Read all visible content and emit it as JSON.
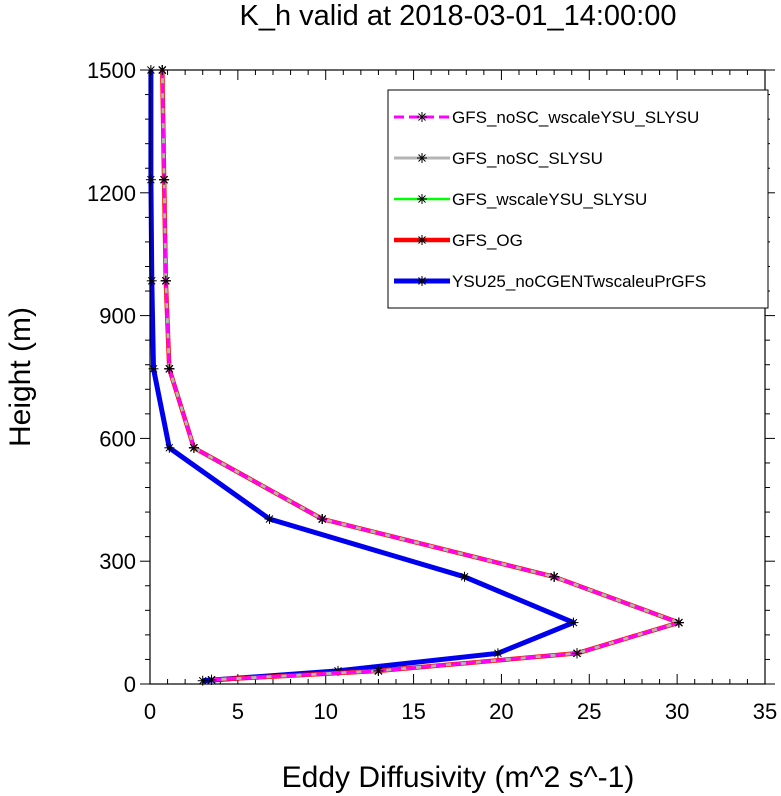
{
  "chart_data": {
    "type": "line",
    "title": "K_h valid at 2018-03-01_14:00:00",
    "xlabel": "Eddy Diffusivity (m^2 s^-1)",
    "ylabel": "Height (m)",
    "xlim": [
      0,
      35
    ],
    "ylim": [
      0,
      1500
    ],
    "xticks": [
      0,
      5,
      10,
      15,
      20,
      25,
      30,
      35
    ],
    "yticks": [
      0,
      300,
      600,
      900,
      1200,
      1500
    ],
    "x_tick_labels": [
      "0",
      "5",
      "10",
      "15",
      "20",
      "25",
      "30",
      "35"
    ],
    "y_tick_labels": [
      "0",
      "300",
      "600",
      "900",
      "1200",
      "1500"
    ],
    "legend_position": "top-right",
    "series": [
      {
        "name": "GFS_noSC_wscaleYSU_SLYSU",
        "color": "#ff00ff",
        "style": "dashed",
        "marker": "asterisk",
        "points": [
          [
            3.5,
            10
          ],
          [
            13.0,
            32
          ],
          [
            24.3,
            75
          ],
          [
            30.1,
            150
          ],
          [
            23.0,
            262
          ],
          [
            9.8,
            403
          ],
          [
            2.5,
            577
          ],
          [
            1.1,
            770
          ],
          [
            0.9,
            985
          ],
          [
            0.8,
            1232
          ],
          [
            0.7,
            1500
          ]
        ]
      },
      {
        "name": "GFS_noSC_SLYSU",
        "color": "#b4b4b4",
        "style": "solid",
        "marker": "asterisk",
        "points": [
          [
            3.5,
            10
          ],
          [
            13.0,
            32
          ],
          [
            24.3,
            75
          ],
          [
            30.1,
            150
          ],
          [
            23.0,
            262
          ],
          [
            9.8,
            403
          ],
          [
            2.5,
            577
          ],
          [
            1.1,
            770
          ],
          [
            0.9,
            985
          ],
          [
            0.8,
            1232
          ],
          [
            0.7,
            1500
          ]
        ]
      },
      {
        "name": "GFS_wscaleYSU_SLYSU",
        "color": "#00ff00",
        "style": "solid",
        "marker": "asterisk",
        "points": [
          [
            3.5,
            10
          ],
          [
            13.0,
            32
          ],
          [
            24.3,
            75
          ],
          [
            30.1,
            150
          ],
          [
            23.0,
            262
          ],
          [
            9.8,
            403
          ],
          [
            2.5,
            577
          ],
          [
            1.1,
            770
          ],
          [
            0.9,
            985
          ],
          [
            0.8,
            1232
          ],
          [
            0.7,
            1500
          ]
        ]
      },
      {
        "name": "GFS_OG",
        "color": "#ff0000",
        "style": "solid",
        "marker": "asterisk",
        "points": [
          [
            3.5,
            10
          ],
          [
            13.0,
            32
          ],
          [
            24.3,
            75
          ],
          [
            30.1,
            150
          ],
          [
            23.0,
            262
          ],
          [
            9.8,
            403
          ],
          [
            2.5,
            577
          ],
          [
            1.1,
            770
          ],
          [
            0.9,
            985
          ],
          [
            0.8,
            1232
          ],
          [
            0.7,
            1500
          ]
        ]
      },
      {
        "name": "YSU25_noCGENTwscaleuPrGFS",
        "color": "#0000ee",
        "style": "solid",
        "marker": "asterisk",
        "points": [
          [
            3.0,
            8
          ],
          [
            10.7,
            32
          ],
          [
            19.8,
            75
          ],
          [
            24.1,
            150
          ],
          [
            17.9,
            262
          ],
          [
            6.8,
            403
          ],
          [
            1.1,
            577
          ],
          [
            0.2,
            770
          ],
          [
            0.1,
            985
          ],
          [
            0.05,
            1232
          ],
          [
            0.05,
            1500
          ]
        ]
      }
    ]
  }
}
